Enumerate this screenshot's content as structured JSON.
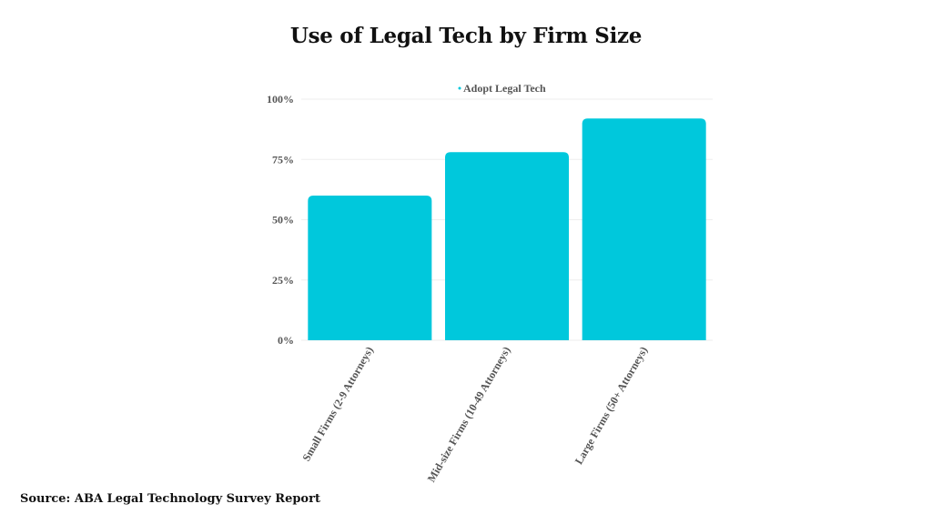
{
  "title": "Use of Legal Tech by Firm Size",
  "source": "Source: ABA Legal Technology Survey Report",
  "colors": {
    "bar": "#00c8dc",
    "grid": "#eeeeee",
    "text": "#555555"
  },
  "chart_data": {
    "type": "bar",
    "title": "Use of Legal Tech by Firm Size",
    "categories": [
      "Small Firms (2-9 Attorneys)",
      "Mid-size Firms (10-49 Attorneys)",
      "Large Firms (50+ Attorneys)"
    ],
    "series": [
      {
        "name": "Adopt Legal Tech",
        "values": [
          60,
          78,
          92
        ]
      }
    ],
    "y_ticks": [
      "0%",
      "25%",
      "50%",
      "75%",
      "100%"
    ],
    "ylim": [
      0,
      100
    ],
    "xlabel": "",
    "ylabel": "",
    "legend": "top-center",
    "grid": true
  }
}
